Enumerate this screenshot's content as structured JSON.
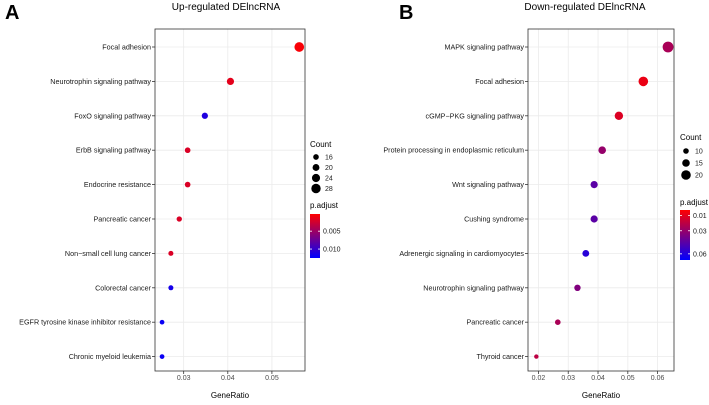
{
  "chart_data": [
    {
      "type": "scatter",
      "panel_label": "A",
      "title": "Up-regulated DElncRNA",
      "xlabel": "GeneRatio",
      "ylabel": "",
      "xlim": [
        0.0235,
        0.0575
      ],
      "xticks": [
        0.03,
        0.04,
        0.05
      ],
      "xtick_labels": [
        "0.03",
        "0.04",
        "0.05"
      ],
      "grid": true,
      "categories": [
        "Focal adhesion",
        "Neurotrophin signaling pathway",
        "FoxO signaling pathway",
        "ErbB signaling pathway",
        "Endocrine resistance",
        "Pancreatic cancer",
        "Non−small cell lung cancer",
        "Colorectal cancer",
        "EGFR tyrosine kinase inhibitor resistance",
        "Chronic myeloid leukemia"
      ],
      "points": [
        {
          "term": "Focal adhesion",
          "gene_ratio": 0.0562,
          "count": 29,
          "p_adjust": 0.0005
        },
        {
          "term": "Neurotrophin signaling pathway",
          "gene_ratio": 0.0406,
          "count": 21,
          "p_adjust": 0.0015
        },
        {
          "term": "FoxO signaling pathway",
          "gene_ratio": 0.0348,
          "count": 18,
          "p_adjust": 0.011
        },
        {
          "term": "ErbB signaling pathway",
          "gene_ratio": 0.0309,
          "count": 16,
          "p_adjust": 0.002
        },
        {
          "term": "Endocrine resistance",
          "gene_ratio": 0.0309,
          "count": 16,
          "p_adjust": 0.002
        },
        {
          "term": "Pancreatic cancer",
          "gene_ratio": 0.029,
          "count": 15,
          "p_adjust": 0.002
        },
        {
          "term": "Non−small cell lung cancer",
          "gene_ratio": 0.0271,
          "count": 14,
          "p_adjust": 0.002
        },
        {
          "term": "Colorectal cancer",
          "gene_ratio": 0.0271,
          "count": 14,
          "p_adjust": 0.0115
        },
        {
          "term": "EGFR tyrosine kinase inhibitor resistance",
          "gene_ratio": 0.0251,
          "count": 13,
          "p_adjust": 0.012
        },
        {
          "term": "Chronic myeloid leukemia",
          "gene_ratio": 0.0251,
          "count": 13,
          "p_adjust": 0.012
        }
      ],
      "size_legend": {
        "title": "Count",
        "values": [
          16,
          20,
          24,
          28
        ],
        "labels": [
          "16",
          "20",
          "24",
          "28"
        ],
        "range": [
          12,
          30
        ]
      },
      "color_legend": {
        "title": "p.adjust",
        "min": 0.0002,
        "max": 0.0125,
        "ticks": [
          0.005,
          0.01
        ],
        "tick_labels": [
          "0.005",
          "0.010"
        ],
        "low_color": "#ff0000",
        "high_color": "#0000ff"
      },
      "legend_position": "right"
    },
    {
      "type": "scatter",
      "panel_label": "B",
      "title": "Down-regulated DElncRNA",
      "xlabel": "GeneRatio",
      "ylabel": "",
      "xlim": [
        0.0165,
        0.0655
      ],
      "xticks": [
        0.02,
        0.03,
        0.04,
        0.05,
        0.06
      ],
      "xtick_labels": [
        "0.02",
        "0.03",
        "0.04",
        "0.05",
        "0.06"
      ],
      "grid": true,
      "categories": [
        "MAPK signaling pathway",
        "Focal adhesion",
        "cGMP−PKG signaling pathway",
        "Protein processing in endoplasmic reticulum",
        "Wnt signaling pathway",
        "Cushing syndrome",
        "Adrenergic signaling in cardiomyocytes",
        "Neurotrophin signaling pathway",
        "Pancreatic cancer",
        "Thyroid cancer"
      ],
      "points": [
        {
          "term": "MAPK signaling pathway",
          "gene_ratio": 0.0635,
          "count": 23,
          "p_adjust": 0.025
        },
        {
          "term": "Focal adhesion",
          "gene_ratio": 0.0552,
          "count": 20,
          "p_adjust": 0.008
        },
        {
          "term": "cGMP−PKG signaling pathway",
          "gene_ratio": 0.047,
          "count": 17,
          "p_adjust": 0.012
        },
        {
          "term": "Protein processing in endoplasmic reticulum",
          "gene_ratio": 0.0414,
          "count": 15,
          "p_adjust": 0.03
        },
        {
          "term": "Wnt signaling pathway",
          "gene_ratio": 0.0387,
          "count": 14,
          "p_adjust": 0.045
        },
        {
          "term": "Cushing syndrome",
          "gene_ratio": 0.0387,
          "count": 14,
          "p_adjust": 0.045
        },
        {
          "term": "Adrenergic signaling in cardiomyocytes",
          "gene_ratio": 0.0359,
          "count": 13,
          "p_adjust": 0.058
        },
        {
          "term": "Neurotrophin signaling pathway",
          "gene_ratio": 0.0331,
          "count": 12,
          "p_adjust": 0.035
        },
        {
          "term": "Pancreatic cancer",
          "gene_ratio": 0.0265,
          "count": 10,
          "p_adjust": 0.025
        },
        {
          "term": "Thyroid cancer",
          "gene_ratio": 0.0193,
          "count": 7,
          "p_adjust": 0.02
        }
      ],
      "size_legend": {
        "title": "Count",
        "values": [
          10,
          15,
          20
        ],
        "labels": [
          "10",
          "15",
          "20"
        ],
        "range": [
          6,
          24
        ]
      },
      "color_legend": {
        "title": "p.adjust",
        "min": 0.003,
        "max": 0.068,
        "ticks": [
          0.01,
          0.03,
          0.06
        ],
        "tick_labels": [
          "0.01",
          "0.03",
          "0.06"
        ],
        "low_color": "#ff0000",
        "high_color": "#0000ff"
      },
      "legend_position": "right"
    }
  ]
}
